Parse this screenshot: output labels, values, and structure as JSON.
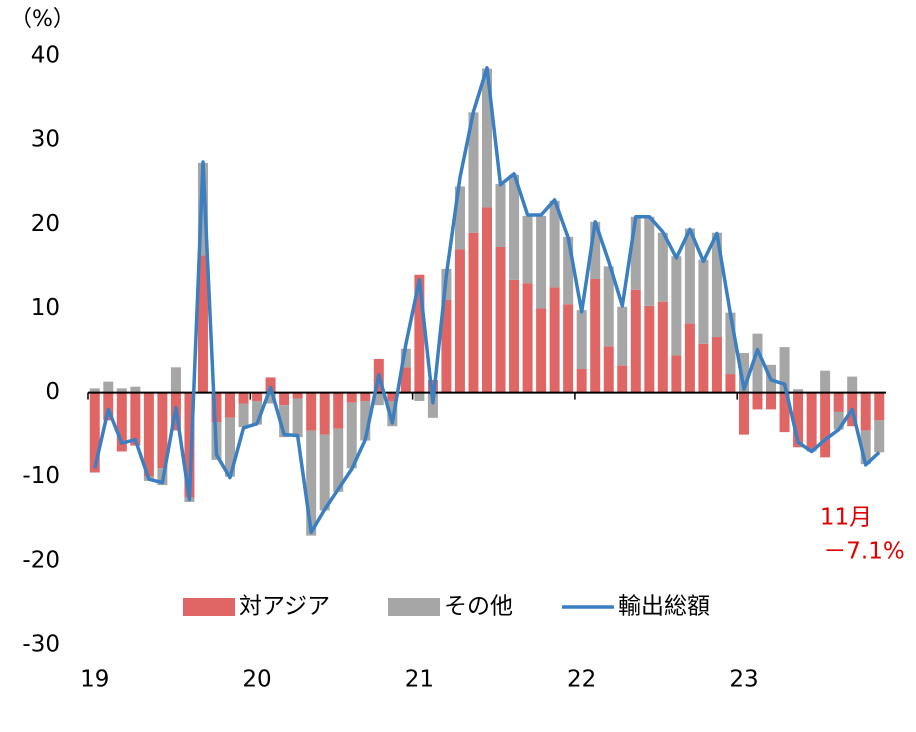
{
  "chart_data": {
    "type": "bar",
    "stacked": true,
    "unit_label": "（%）",
    "categories": [
      "19",
      null,
      null,
      null,
      null,
      null,
      null,
      null,
      null,
      null,
      null,
      null,
      "20",
      null,
      null,
      null,
      null,
      null,
      null,
      null,
      null,
      null,
      null,
      null,
      "21",
      null,
      null,
      null,
      null,
      null,
      null,
      null,
      null,
      null,
      null,
      null,
      "22",
      null,
      null,
      null,
      null,
      null,
      null,
      null,
      null,
      null,
      null,
      null,
      "23",
      null,
      null,
      null,
      null,
      null,
      null,
      null,
      null,
      null,
      null
    ],
    "series": [
      {
        "name": "対アジア",
        "type": "bar",
        "color": "#e06666",
        "values": [
          -9.5,
          -3.3,
          -7,
          -6.3,
          -10,
          -9,
          -4.5,
          -12.5,
          16.3,
          -3.5,
          -3,
          -1.3,
          -1,
          1.8,
          -1.5,
          -0.7,
          -4.5,
          -5,
          -4.3,
          -1.2,
          -1,
          4,
          -1,
          3,
          14,
          1.5,
          11,
          17,
          19,
          22,
          17.3,
          13.4,
          13,
          10,
          12.5,
          10.5,
          2.8,
          13.5,
          5.5,
          3.2,
          12.2,
          10.3,
          10.8,
          4.4,
          8.2,
          5.8,
          6.6,
          2.2,
          -5,
          -2,
          -2,
          -4.7,
          -6.5,
          -6.8,
          -7.7,
          -2.3,
          -4,
          -4.5,
          -3.3
        ]
      },
      {
        "name": "その他",
        "type": "bar",
        "color": "#a6a6a6",
        "values": [
          0.5,
          1.3,
          0.5,
          0.7,
          -0.5,
          -2,
          3,
          -0.5,
          11,
          -4.5,
          -7,
          -2.8,
          -2.8,
          -1.3,
          -3.8,
          -4.6,
          -12.5,
          -9,
          -7.5,
          -7.8,
          -4.7,
          -1.5,
          -3,
          2.2,
          -1,
          -3,
          3.7,
          7.5,
          14.3,
          16.5,
          7.5,
          12.5,
          8,
          11,
          10.3,
          8,
          7,
          6.8,
          9.5,
          7,
          8.7,
          10.6,
          8.2,
          11.8,
          11.3,
          10,
          12.4,
          7.3,
          4.7,
          7,
          3.3,
          5.4,
          0.4,
          -0.2,
          2.6,
          -2.1,
          1.9,
          -4,
          -3.8
        ]
      },
      {
        "name": "輸出総額",
        "type": "line",
        "color": "#3a7fc1",
        "values": [
          -9,
          -2,
          -6,
          -5.6,
          -10.3,
          -10.7,
          -1.8,
          -12.7,
          27.4,
          -7.4,
          -10.1,
          -4.2,
          -3.7,
          0.6,
          -5,
          -5.1,
          -16.6,
          -13.9,
          -11.5,
          -9.1,
          -5.6,
          2.1,
          -3.6,
          5.7,
          13.4,
          -1.2,
          14,
          25.5,
          33.4,
          38.6,
          24.7,
          26,
          21.1,
          21.1,
          22.9,
          18.4,
          9.6,
          20.3,
          15.6,
          10.3,
          20.9,
          20.9,
          19.1,
          16,
          19.4,
          15.6,
          18.9,
          9.3,
          0.4,
          5.1,
          1.5,
          1,
          -5.9,
          -7,
          -5.6,
          -4.4,
          -2,
          -8.6,
          -7.1
        ]
      }
    ],
    "ylim": [
      -30,
      40
    ],
    "yticks": [
      -30,
      -20,
      -10,
      0,
      10,
      20,
      30,
      40
    ],
    "grid": false,
    "legend": "bottom",
    "annotations": [
      "11月",
      "－7.1%"
    ],
    "annotation_color": "#e00000"
  }
}
